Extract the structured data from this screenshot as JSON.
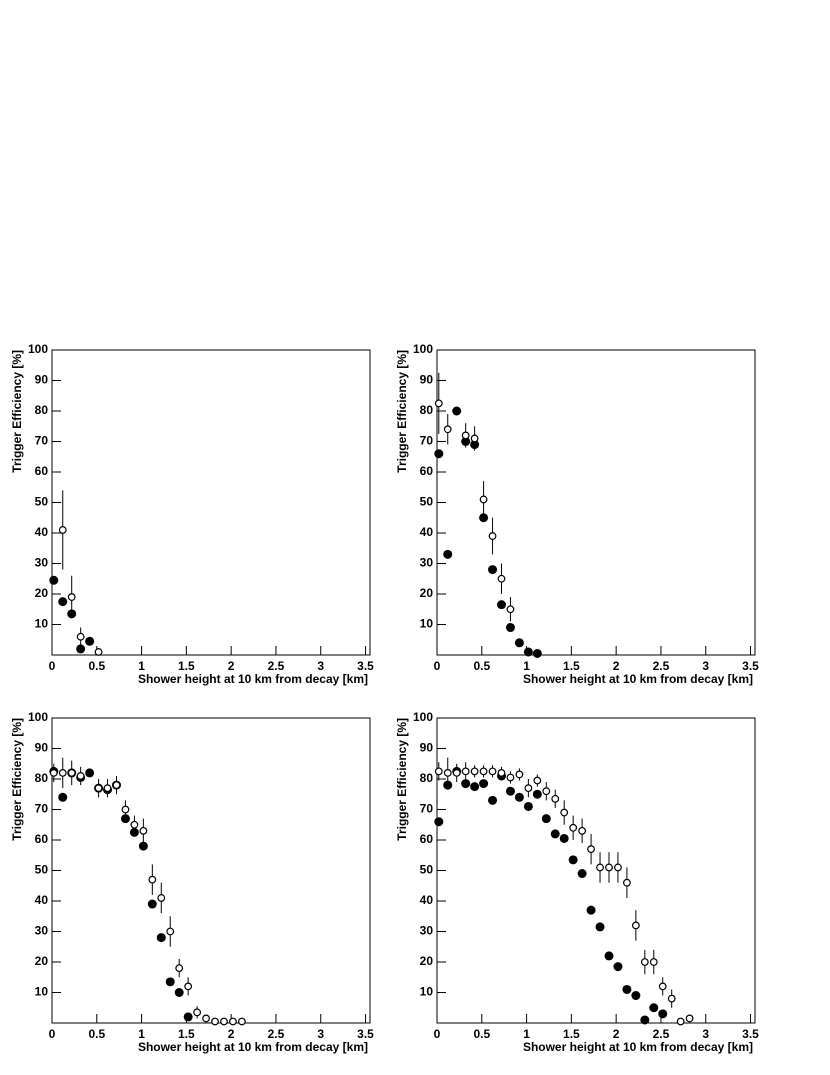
{
  "chart_data": [
    {
      "type": "scatter",
      "xlabel": "Shower height at 10 km from decay [km]",
      "ylabel": "Trigger Efficiency [%]",
      "xlim": [
        0,
        3.55
      ],
      "ylim": [
        0,
        100
      ],
      "xticks": [
        0,
        0.5,
        1,
        1.5,
        2,
        2.5,
        3,
        3.5
      ],
      "yticks": [
        10,
        20,
        30,
        40,
        50,
        60,
        70,
        80,
        90,
        100
      ],
      "series": [
        {
          "color": "#000000",
          "marker": "filled",
          "x": [
            0.02,
            0.12,
            0.22,
            0.32,
            0.42
          ],
          "values": [
            24.5,
            17.5,
            13.5,
            2,
            4.5
          ]
        },
        {
          "color": "#000000",
          "marker": "open",
          "x": [
            0.12,
            0.22,
            0.32,
            0.52
          ],
          "values": [
            41,
            19,
            6,
            1
          ],
          "errors": [
            13,
            7,
            3,
            1
          ]
        }
      ]
    },
    {
      "type": "scatter",
      "xlabel": "Shower height at 10 km from decay [km]",
      "ylabel": "Trigger Efficiency [%]",
      "xlim": [
        0,
        3.55
      ],
      "ylim": [
        0,
        100
      ],
      "xticks": [
        0,
        0.5,
        1,
        1.5,
        2,
        2.5,
        3,
        3.5
      ],
      "yticks": [
        10,
        20,
        30,
        40,
        50,
        60,
        70,
        80,
        90,
        100
      ],
      "series": [
        {
          "color": "#000000",
          "marker": "filled",
          "x": [
            0.02,
            0.12,
            0.22,
            0.32,
            0.42,
            0.52,
            0.62,
            0.72,
            0.82,
            0.92,
            1.02,
            1.12
          ],
          "values": [
            66,
            33,
            80,
            70,
            69,
            45,
            28,
            16.5,
            9,
            4,
            1,
            0.5
          ]
        },
        {
          "color": "#000000",
          "marker": "open",
          "x": [
            0.02,
            0.12,
            0.32,
            0.42,
            0.52,
            0.62,
            0.72,
            0.82
          ],
          "values": [
            82.5,
            74,
            72,
            71,
            51,
            39,
            25,
            15
          ],
          "errors": [
            10,
            5,
            4,
            4,
            6,
            6,
            5,
            4
          ]
        }
      ]
    },
    {
      "type": "scatter",
      "xlabel": "Shower height at 10 km from decay [km]",
      "ylabel": "Trigger Efficiency [%]",
      "xlim": [
        0,
        3.55
      ],
      "ylim": [
        0,
        100
      ],
      "xticks": [
        0,
        0.5,
        1,
        1.5,
        2,
        2.5,
        3,
        3.5
      ],
      "yticks": [
        10,
        20,
        30,
        40,
        50,
        60,
        70,
        80,
        90,
        100
      ],
      "series": [
        {
          "color": "#000000",
          "marker": "filled",
          "x": [
            0.02,
            0.12,
            0.22,
            0.32,
            0.42,
            0.52,
            0.62,
            0.72,
            0.82,
            0.92,
            1.02,
            1.12,
            1.22,
            1.32,
            1.42,
            1.52
          ],
          "values": [
            82.5,
            74,
            82,
            80.5,
            82,
            77,
            76.5,
            78,
            67,
            62.5,
            58,
            39,
            28,
            13.5,
            10,
            2
          ]
        },
        {
          "color": "#000000",
          "marker": "open",
          "x": [
            0.02,
            0.12,
            0.22,
            0.32,
            0.52,
            0.62,
            0.72,
            0.82,
            0.92,
            1.02,
            1.12,
            1.22,
            1.32,
            1.42,
            1.52,
            1.62,
            1.72,
            1.82,
            1.92,
            2.02,
            2.12
          ],
          "values": [
            82,
            82,
            82,
            81,
            77,
            77,
            78,
            70,
            65,
            63,
            47,
            41,
            30,
            18,
            12,
            3.5,
            1.5,
            0.5,
            0.5,
            0.5,
            0.5
          ],
          "errors": [
            3,
            5,
            4,
            3,
            3,
            3,
            3,
            3,
            3,
            4,
            5,
            5,
            5,
            3,
            3,
            2,
            1,
            0.5,
            0.5,
            1,
            0.5
          ]
        }
      ]
    },
    {
      "type": "scatter",
      "xlabel": "Shower height at 10 km from decay [km]",
      "ylabel": "Trigger Efficiency [%]",
      "xlim": [
        0,
        3.55
      ],
      "ylim": [
        0,
        100
      ],
      "xticks": [
        0,
        0.5,
        1,
        1.5,
        2,
        2.5,
        3,
        3.5
      ],
      "yticks": [
        10,
        20,
        30,
        40,
        50,
        60,
        70,
        80,
        90,
        100
      ],
      "series": [
        {
          "color": "#000000",
          "marker": "filled",
          "x": [
            0.02,
            0.12,
            0.22,
            0.32,
            0.42,
            0.52,
            0.62,
            0.72,
            0.82,
            0.92,
            1.02,
            1.12,
            1.22,
            1.32,
            1.42,
            1.52,
            1.62,
            1.72,
            1.82,
            1.92,
            2.02,
            2.12,
            2.22,
            2.32,
            2.42,
            2.52
          ],
          "values": [
            66,
            78,
            82.5,
            78.5,
            77.5,
            78.5,
            73,
            81,
            76,
            74,
            71,
            75,
            67,
            62,
            60.5,
            53.5,
            49,
            37,
            31.5,
            22,
            18.5,
            11,
            9,
            1,
            5,
            3
          ]
        },
        {
          "color": "#000000",
          "marker": "open",
          "x": [
            0.02,
            0.12,
            0.22,
            0.32,
            0.42,
            0.52,
            0.62,
            0.72,
            0.82,
            0.92,
            1.02,
            1.12,
            1.22,
            1.32,
            1.42,
            1.52,
            1.62,
            1.72,
            1.82,
            1.92,
            2.02,
            2.12,
            2.22,
            2.32,
            2.42,
            2.52,
            2.62,
            2.72,
            2.82
          ],
          "values": [
            82.5,
            82,
            82,
            82.5,
            82.5,
            82.5,
            82.5,
            82,
            80.5,
            81.5,
            77,
            79.5,
            76,
            73.5,
            69,
            64,
            63,
            57,
            51,
            51,
            51,
            46,
            32,
            20,
            20,
            12,
            8,
            0.5,
            1.5
          ],
          "errors": [
            3,
            5,
            3,
            3,
            2,
            2,
            2,
            2,
            2,
            2,
            3,
            2,
            3,
            3,
            4,
            4,
            4,
            5,
            5,
            5,
            5,
            5,
            5,
            4,
            4,
            3,
            3,
            0.5,
            1
          ]
        }
      ]
    }
  ]
}
